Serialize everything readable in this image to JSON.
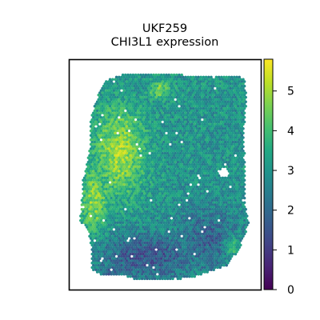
{
  "chart_data": {
    "type": "heatmap",
    "subtype": "spatial spot plot",
    "title_lines": [
      "UKF259",
      "CHI3L1 expression"
    ],
    "colormap": "viridis",
    "colorbar": {
      "vmin": 0,
      "vmax": 5.8,
      "ticks": [
        0,
        1,
        2,
        3,
        4,
        5
      ],
      "tick_labels": [
        "0",
        "1",
        "2",
        "3",
        "4",
        "5"
      ]
    },
    "axes": {
      "x_ticks_visible": false,
      "y_ticks_visible": false,
      "grid": false
    },
    "value_distribution": {
      "overall_typical": 3.0,
      "high_region_value": 5.0,
      "low_region_value": 1.5,
      "description": "mostly teal (~2.5–3.5); bright yellow-green band (~4.5–5.5) along the left-center region; darker blue-purple patches (~1–2) at the bottom and lower right"
    },
    "colors": {
      "viridis_low": "#440154",
      "viridis_mid": "#21918c",
      "viridis_high": "#fde725"
    }
  }
}
